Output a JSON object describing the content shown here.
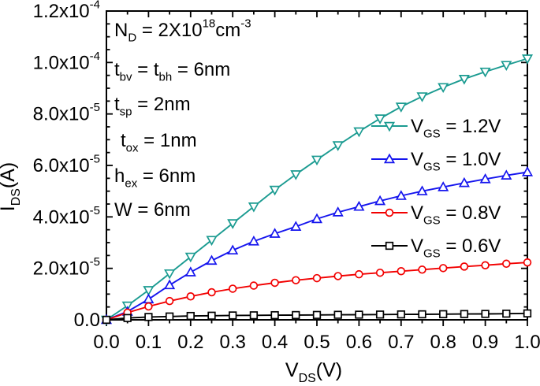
{
  "chart_data": {
    "type": "line",
    "title": "",
    "xlabel": [
      {
        "t": "V"
      },
      {
        "t": "DS",
        "type": "sub"
      },
      {
        "t": "(V)"
      }
    ],
    "ylabel": [
      {
        "t": "I"
      },
      {
        "t": "DS",
        "type": "sub"
      },
      {
        "t": "(A)"
      }
    ],
    "xlim": [
      0.0,
      1.0
    ],
    "ylim": [
      0.0,
      0.00012
    ],
    "grid": false,
    "x_major_ticks": [
      0.0,
      0.1,
      0.2,
      0.3,
      0.4,
      0.5,
      0.6,
      0.7,
      0.8,
      0.9,
      1.0
    ],
    "x_tick_labels": [
      "0.0",
      "0.1",
      "0.2",
      "0.3",
      "0.4",
      "0.5",
      "0.6",
      "0.7",
      "0.8",
      "0.9",
      "1.0"
    ],
    "x_minor_step": 0.05,
    "y_major_ticks": [
      0.0,
      2e-05,
      4e-05,
      6e-05,
      8e-05,
      0.0001,
      0.00012
    ],
    "y_tick_labels": [
      [
        {
          "t": "0.0"
        }
      ],
      [
        {
          "t": "2.0x10"
        },
        {
          "t": "-5",
          "type": "sup"
        }
      ],
      [
        {
          "t": "4.0x10"
        },
        {
          "t": "-5",
          "type": "sup"
        }
      ],
      [
        {
          "t": "6.0x10"
        },
        {
          "t": "-5",
          "type": "sup"
        }
      ],
      [
        {
          "t": "8.0x10"
        },
        {
          "t": "-5",
          "type": "sup"
        }
      ],
      [
        {
          "t": "1.0x10"
        },
        {
          "t": "-4",
          "type": "sup"
        }
      ],
      [
        {
          "t": "1.2x10"
        },
        {
          "t": "-4",
          "type": "sup"
        }
      ]
    ],
    "y_minor_step": 5e-06,
    "annotations": [
      {
        "segments": [
          {
            "t": "N"
          },
          {
            "t": "D",
            "type": "sub"
          },
          {
            "t": " = 2X10"
          },
          {
            "t": "18",
            "type": "sup"
          },
          {
            "t": "cm"
          },
          {
            "t": "-3",
            "type": "sup"
          }
        ]
      },
      {
        "segments": [
          {
            "t": "t"
          },
          {
            "t": "bv",
            "type": "sub"
          },
          {
            "t": " = t"
          },
          {
            "t": "bh",
            "type": "sub"
          },
          {
            "t": " = 6nm"
          }
        ]
      },
      {
        "segments": [
          {
            "t": "t"
          },
          {
            "t": "sp",
            "type": "sub"
          },
          {
            "t": " = 2nm"
          }
        ]
      },
      {
        "segments": [
          {
            "t": "t"
          },
          {
            "t": "ox",
            "type": "sub"
          },
          {
            "t": " = 1nm"
          }
        ]
      },
      {
        "segments": [
          {
            "t": "h"
          },
          {
            "t": "ex",
            "type": "sub"
          },
          {
            "t": " = 6nm"
          }
        ]
      },
      {
        "segments": [
          {
            "t": "W = 6nm"
          }
        ]
      }
    ],
    "legend_position": "inside-right",
    "x": [
      0,
      0.05,
      0.1,
      0.15,
      0.2,
      0.25,
      0.3,
      0.35,
      0.4,
      0.45,
      0.5,
      0.55,
      0.6,
      0.65,
      0.7,
      0.75,
      0.8,
      0.85,
      0.9,
      0.95,
      1.0
    ],
    "series": [
      {
        "id": "vgs-1.2v",
        "name": "VGS = 1.2V",
        "label": [
          {
            "t": "V"
          },
          {
            "t": "GS",
            "type": "sub"
          },
          {
            "t": " = 1.2V"
          }
        ],
        "color": "#1b9b91",
        "marker": "triangle-down",
        "y": [
          0,
          5.5e-06,
          1.15e-05,
          1.8e-05,
          2.45e-05,
          3.1e-05,
          3.75e-05,
          4.4e-05,
          5.05e-05,
          5.65e-05,
          6.22e-05,
          6.78e-05,
          7.32e-05,
          7.82e-05,
          8.28e-05,
          8.68e-05,
          9.04e-05,
          9.36e-05,
          9.64e-05,
          9.9e-05,
          0.0001015
        ]
      },
      {
        "id": "vgs-1.0v",
        "name": "VGS = 1.0V",
        "label": [
          {
            "t": "V"
          },
          {
            "t": "GS",
            "type": "sub"
          },
          {
            "t": " = 1.0V"
          }
        ],
        "color": "#1515ee",
        "marker": "triangle-up",
        "y": [
          0,
          3.2e-06,
          8e-06,
          1.35e-05,
          1.85e-05,
          2.3e-05,
          2.7e-05,
          3.05e-05,
          3.35e-05,
          3.62e-05,
          3.92e-05,
          4.18e-05,
          4.4e-05,
          4.62e-05,
          4.82e-05,
          5e-05,
          5.16e-05,
          5.32e-05,
          5.47e-05,
          5.61e-05,
          5.74e-05
        ]
      },
      {
        "id": "vgs-0.8v",
        "name": "VGS = 0.8V",
        "label": [
          {
            "t": "V"
          },
          {
            "t": "GS",
            "type": "sub"
          },
          {
            "t": " = 0.8V"
          }
        ],
        "color": "#f20000",
        "marker": "circle",
        "y": [
          0,
          2.8e-06,
          5.2e-06,
          7.3e-06,
          9.1e-06,
          1.07e-05,
          1.21e-05,
          1.33e-05,
          1.44e-05,
          1.54e-05,
          1.62e-05,
          1.7e-05,
          1.77e-05,
          1.83e-05,
          1.89e-05,
          1.95e-05,
          2.01e-05,
          2.07e-05,
          2.12e-05,
          2.18e-05,
          2.23e-05
        ]
      },
      {
        "id": "vgs-0.6v",
        "name": "VGS = 0.6V",
        "label": [
          {
            "t": "V"
          },
          {
            "t": "GS",
            "type": "sub"
          },
          {
            "t": " = 0.6V"
          }
        ],
        "color": "#000000",
        "marker": "square",
        "y": [
          0,
          7e-07,
          1.1e-06,
          1.3e-06,
          1.5e-06,
          1.6e-06,
          1.7e-06,
          1.75e-06,
          1.8e-06,
          1.85e-06,
          1.9e-06,
          1.95e-06,
          2e-06,
          2.05e-06,
          2.1e-06,
          2.15e-06,
          2.2e-06,
          2.25e-06,
          2.3e-06,
          2.4e-06,
          2.5e-06
        ]
      }
    ],
    "colors": {
      "axis": "#000000",
      "text": "#000000",
      "background": "#ffffff"
    }
  }
}
